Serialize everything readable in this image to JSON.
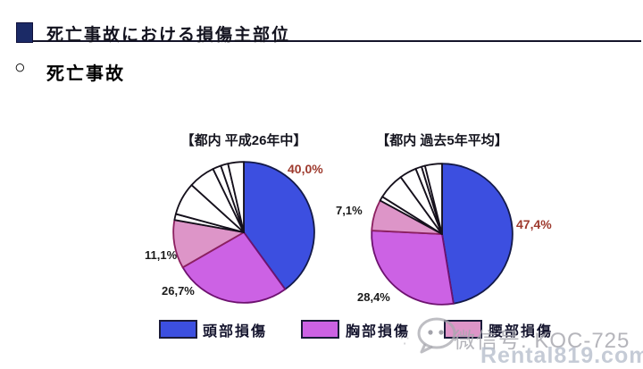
{
  "page": {
    "title": "死亡事故における損傷主部位",
    "section_marker": "○",
    "section_title": "死亡事故"
  },
  "colors": {
    "head_blue": "#3c4fe0",
    "chest_magenta": "#cc62e4",
    "waist_pink": "#dd95c8",
    "highlight_label_red": "#9e3a2e",
    "title_square_navy": "#1b2a66"
  },
  "legend": {
    "items": [
      {
        "key": "head",
        "label": "頭部損傷",
        "color": "#3c4fe0"
      },
      {
        "key": "chest",
        "label": "胸部損傷",
        "color": "#cc62e4"
      },
      {
        "key": "waist",
        "label": "腰部損傷",
        "color": "#dd95c8"
      }
    ]
  },
  "watermark": {
    "wechat_line": "微信号: KOC-725",
    "site_line": "Rental819.com"
  },
  "chart_data": [
    {
      "type": "pie",
      "title": "【都内  平成26年中】",
      "legend_position": "bottom",
      "start_angle_deg": 0,
      "direction": "clockwise",
      "slices": [
        {
          "label": "頭部損傷",
          "value": 40.0,
          "value_label": "40,0%",
          "color": "#3c4fe0",
          "stroke": "#141a4a"
        },
        {
          "label": "胸部損傷",
          "value": 26.7,
          "value_label": "26,7%",
          "color": "#cc62e4",
          "stroke": "#6e1270"
        },
        {
          "label": "腰部損傷",
          "value": 11.1,
          "value_label": "11,1%",
          "color": "#dd95c8",
          "stroke": "#8c2060"
        },
        {
          "label": "",
          "value": 1.4,
          "color": "#ffffff",
          "stroke": "#15101c",
          "estimated": true
        },
        {
          "label": "",
          "value": 7.5,
          "color": "#ffffff",
          "stroke": "#15101c",
          "estimated": true
        },
        {
          "label": "",
          "value": 6.1,
          "color": "#ffffff",
          "stroke": "#15101c",
          "estimated": true
        },
        {
          "label": "",
          "value": 1.9,
          "color": "#ffffff",
          "stroke": "#15101c",
          "estimated": true
        },
        {
          "label": "",
          "value": 1.7,
          "color": "#ffffff",
          "stroke": "#15101c",
          "estimated": true
        },
        {
          "label": "",
          "value": 3.6,
          "color": "#ffffff",
          "stroke": "#15101c",
          "estimated": true
        }
      ]
    },
    {
      "type": "pie",
      "title": "【都内  過去5年平均】",
      "legend_position": "bottom",
      "start_angle_deg": 0,
      "direction": "clockwise",
      "slices": [
        {
          "label": "頭部損傷",
          "value": 47.4,
          "value_label": "47,4%",
          "color": "#3c4fe0",
          "stroke": "#141a4a"
        },
        {
          "label": "胸部損傷",
          "value": 28.4,
          "value_label": "28,4%",
          "color": "#cc62e4",
          "stroke": "#6e1270"
        },
        {
          "label": "腰部損傷",
          "value": 7.1,
          "value_label": "7,1%",
          "color": "#dd95c8",
          "stroke": "#8c2060"
        },
        {
          "label": "",
          "value": 1.0,
          "color": "#ffffff",
          "stroke": "#15101c",
          "estimated": true
        },
        {
          "label": "",
          "value": 6.1,
          "color": "#ffffff",
          "stroke": "#15101c",
          "estimated": true
        },
        {
          "label": "",
          "value": 3.9,
          "color": "#ffffff",
          "stroke": "#15101c",
          "estimated": true
        },
        {
          "label": "",
          "value": 1.4,
          "color": "#ffffff",
          "stroke": "#15101c",
          "estimated": true
        },
        {
          "label": "",
          "value": 0.8,
          "color": "#ffffff",
          "stroke": "#15101c",
          "estimated": true
        },
        {
          "label": "",
          "value": 3.9,
          "color": "#ffffff",
          "stroke": "#15101c",
          "estimated": true
        }
      ]
    }
  ]
}
